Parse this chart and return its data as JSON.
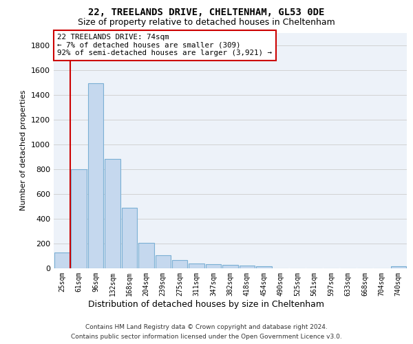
{
  "title1": "22, TREELANDS DRIVE, CHELTENHAM, GL53 0DE",
  "title2": "Size of property relative to detached houses in Cheltenham",
  "xlabel": "Distribution of detached houses by size in Cheltenham",
  "ylabel": "Number of detached properties",
  "footnote1": "Contains HM Land Registry data © Crown copyright and database right 2024.",
  "footnote2": "Contains public sector information licensed under the Open Government Licence v3.0.",
  "categories": [
    "25sqm",
    "61sqm",
    "96sqm",
    "132sqm",
    "168sqm",
    "204sqm",
    "239sqm",
    "275sqm",
    "311sqm",
    "347sqm",
    "382sqm",
    "418sqm",
    "454sqm",
    "490sqm",
    "525sqm",
    "561sqm",
    "597sqm",
    "633sqm",
    "668sqm",
    "704sqm",
    "740sqm"
  ],
  "values": [
    125,
    800,
    1490,
    880,
    490,
    205,
    105,
    65,
    40,
    35,
    30,
    22,
    15,
    2,
    2,
    2,
    2,
    2,
    2,
    2,
    15
  ],
  "bar_color": "#c5d8ee",
  "bar_edge_color": "#7aafd4",
  "grid_color": "#cccccc",
  "vline_color": "#cc0000",
  "property_size": "74sqm",
  "property_name": "22 TREELANDS DRIVE",
  "ann_line1": "22 TREELANDS DRIVE: 74sqm",
  "ann_line2": "← 7% of detached houses are smaller (309)",
  "ann_line3": "92% of semi-detached houses are larger (3,921) →",
  "ylim_max": 1900,
  "yticks": [
    0,
    200,
    400,
    600,
    800,
    1000,
    1200,
    1400,
    1600,
    1800
  ],
  "background_color": "#edf2f9"
}
